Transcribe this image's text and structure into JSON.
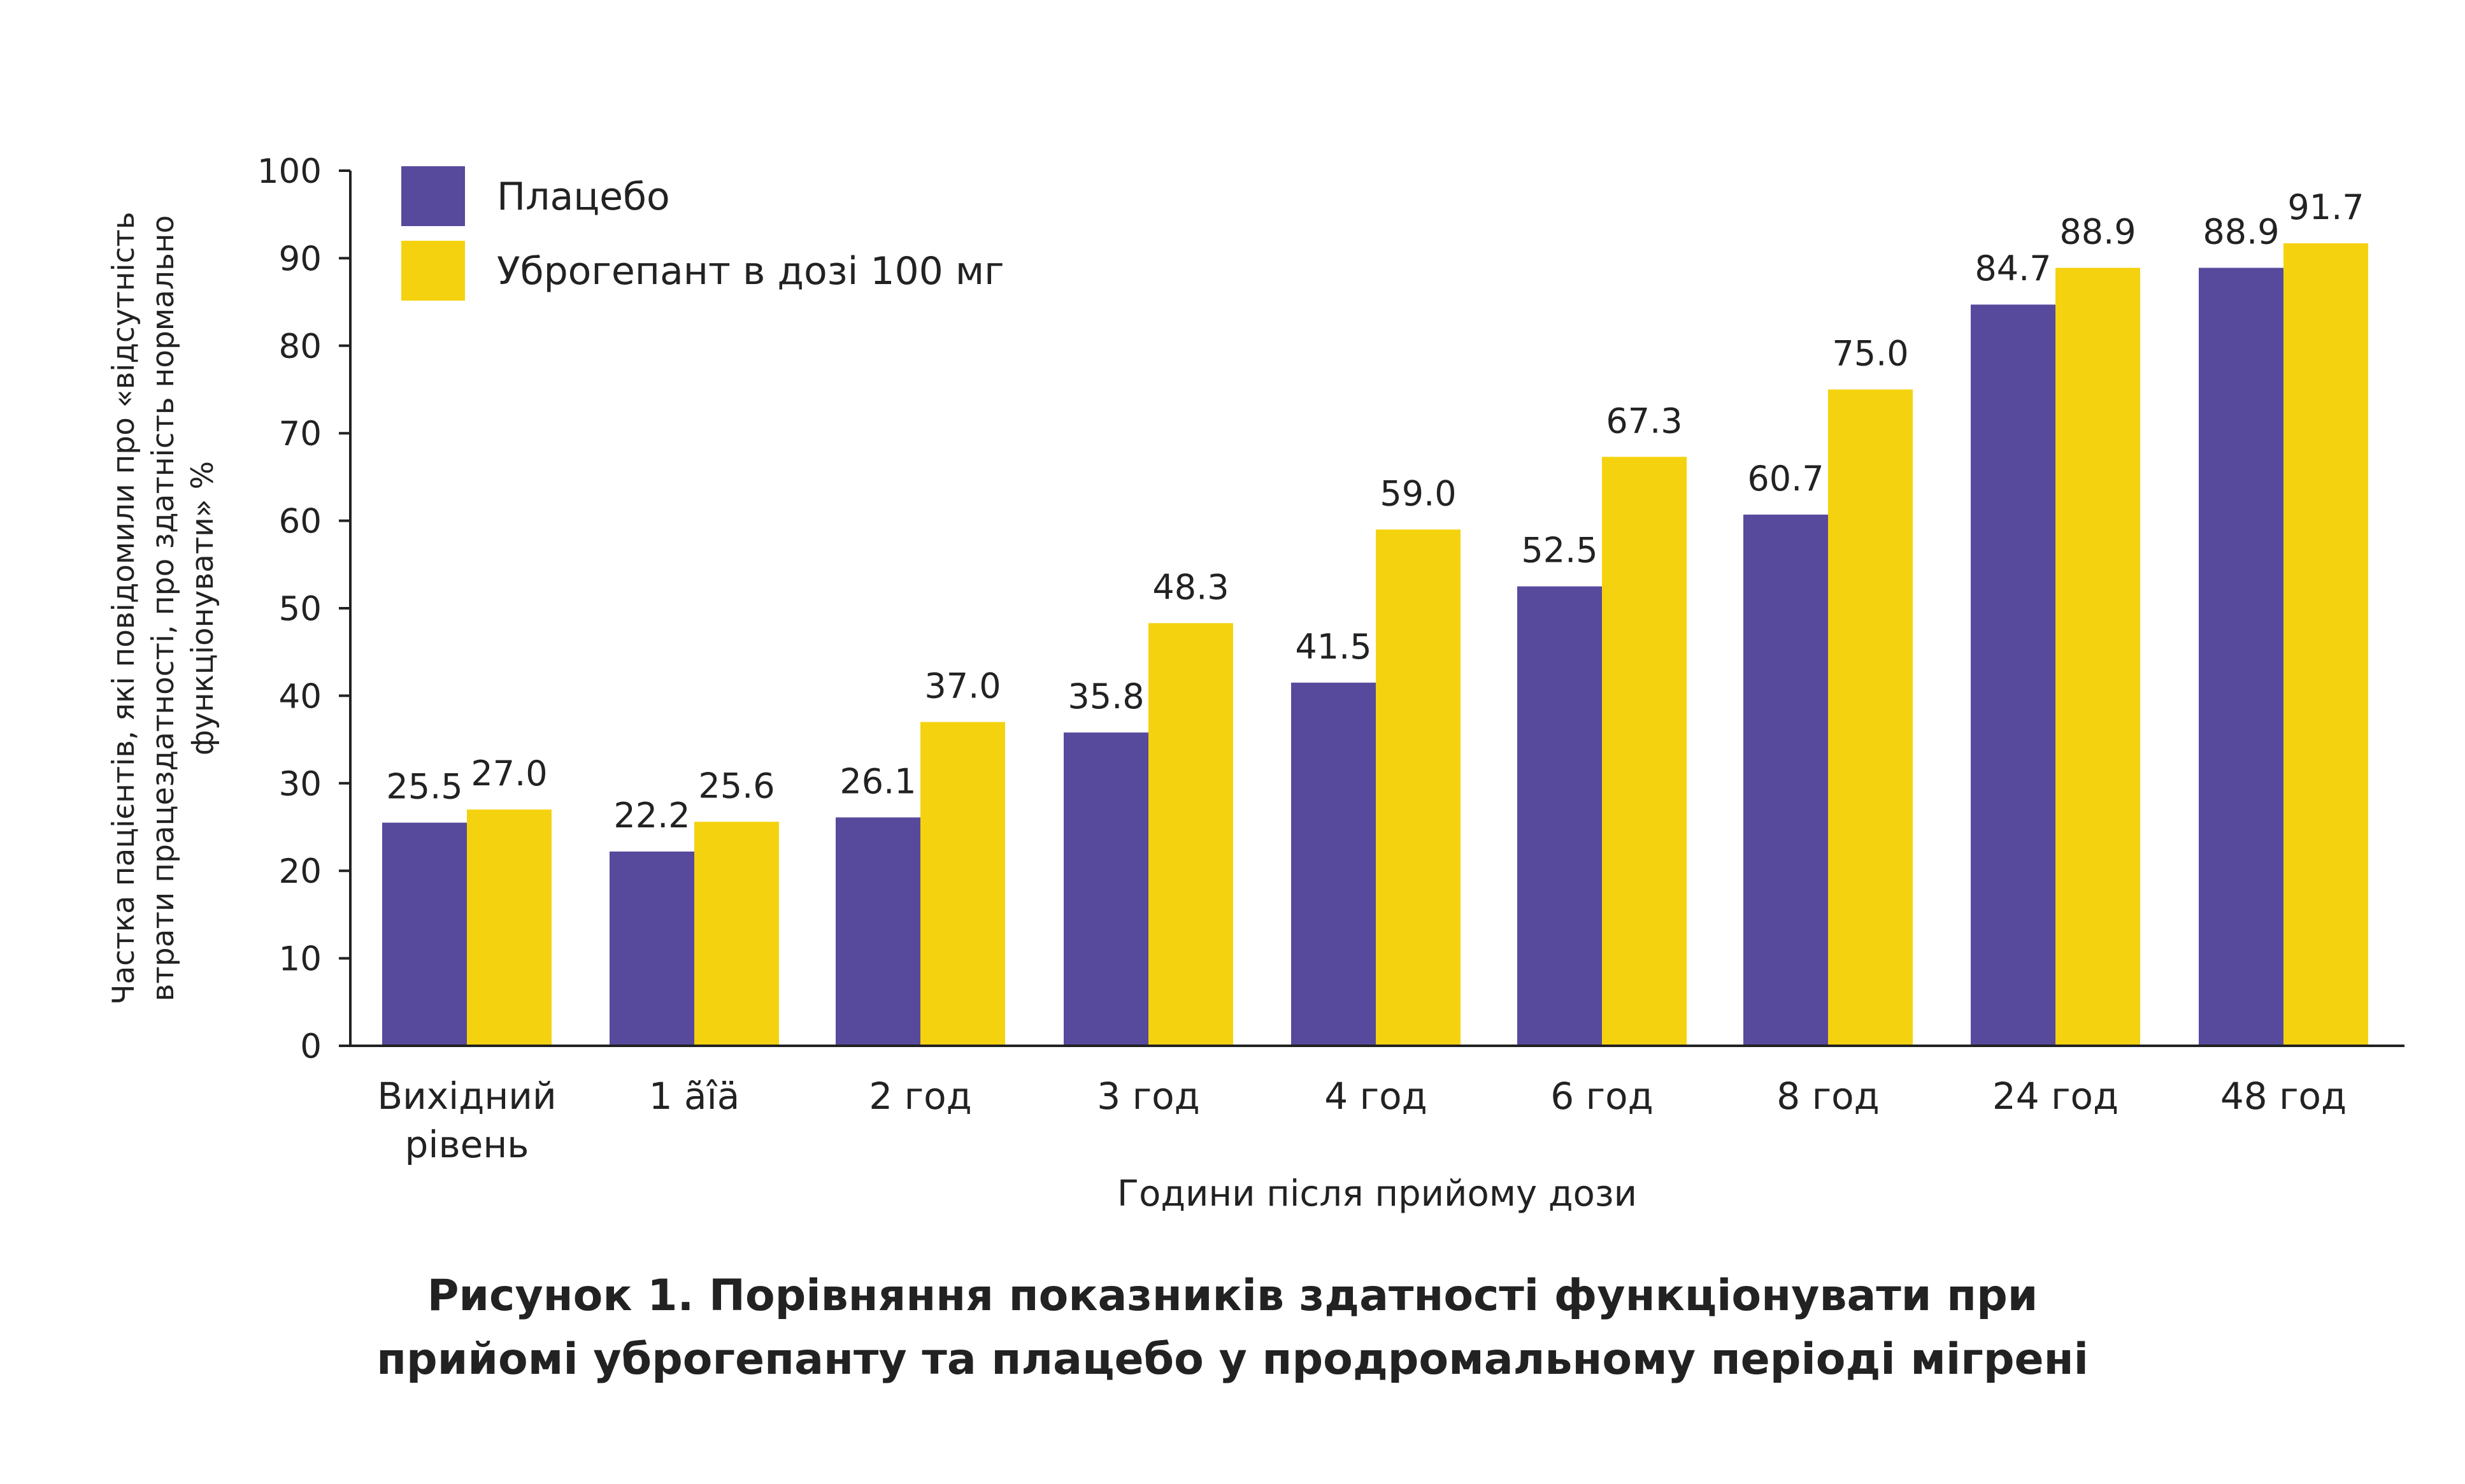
{
  "chart_data": {
    "type": "bar",
    "categories": [
      [
        "Вихідний",
        "рівень"
      ],
      [
        "1 ãîä"
      ],
      [
        "2 год"
      ],
      [
        "3 год"
      ],
      [
        "4 год"
      ],
      [
        "6 год"
      ],
      [
        "8 год"
      ],
      [
        "24 год"
      ],
      [
        "48 год"
      ]
    ],
    "series": [
      {
        "name": "Плацебо",
        "color": "#574a9d",
        "values": [
          25.5,
          22.2,
          26.1,
          35.8,
          41.5,
          52.5,
          60.7,
          84.7,
          88.9
        ],
        "labels": [
          "25.5",
          "22.2",
          "26.1",
          "35.8",
          "41.5",
          "52.5",
          "60.7",
          "84.7",
          "88.9"
        ]
      },
      {
        "name": "Уброгепант в дозі 100 мг",
        "color": "#f5d20f",
        "values": [
          27.0,
          25.6,
          37.0,
          48.3,
          59.0,
          67.3,
          75.0,
          88.9,
          91.7
        ],
        "labels": [
          "27.0",
          "25.6",
          "37.0",
          "48.3",
          "59.0",
          "67.3",
          "75.0",
          "88.9",
          "91.7"
        ]
      }
    ],
    "ylim": [
      0,
      100
    ],
    "yticks": [
      "0",
      "10",
      "20",
      "30",
      "40",
      "50",
      "60",
      "70",
      "80",
      "90",
      "100"
    ],
    "xlabel": "Години після прийому дози",
    "ylabel_lines": [
      "Частка пацієнтів, які повідомили про «відсутність",
      "втрати працездатності, про здатність нормально",
      "функціонувати» %"
    ],
    "grid": false,
    "legend_position": "top-left"
  },
  "caption": {
    "line1": "Рисунок 1. Порівняння показників здатності функціонувати при",
    "line2": "прийомі уброгепанту та плацебо у продромальному періоді мігрені"
  }
}
